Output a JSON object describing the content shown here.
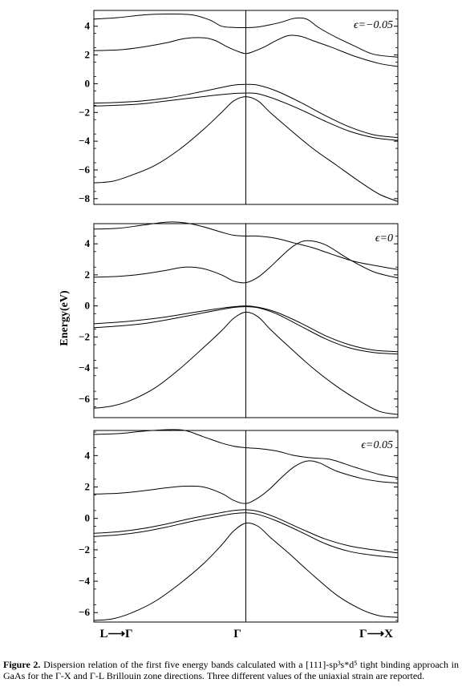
{
  "figure": {
    "caption_label": "Figure 2.",
    "caption_text": " Dispersion relation of the first five energy bands calculated with a [111]-sp³s*d⁵ tight binding approach in GaAs for the Γ-X and Γ-L Brillouin zone directions. Three different values of the uniaxial strain are reported."
  },
  "chart_data": {
    "type": "line",
    "ylabel": "Energy(eV)",
    "x_tick_labels": [
      "L⟶Γ",
      "Γ",
      "Γ⟶X"
    ],
    "xlim": [
      0,
      1
    ],
    "x_note": "x=0 is L, x=0.5 is Γ, x=1 is X",
    "panels": [
      {
        "label": "ϵ=−0.05",
        "ylim": [
          -8.4,
          5.1
        ],
        "yticks": [
          -8,
          -6,
          -4,
          -2,
          0,
          2,
          4
        ],
        "series": [
          {
            "x": [
              0,
              0.08,
              0.16,
              0.24,
              0.32,
              0.38,
              0.42,
              0.46,
              0.5,
              0.54,
              0.58,
              0.62,
              0.66,
              0.7,
              0.74,
              0.8,
              0.86,
              0.92,
              1.0
            ],
            "y": [
              4.5,
              4.6,
              4.78,
              4.85,
              4.8,
              4.45,
              4.0,
              3.92,
              3.9,
              3.95,
              4.1,
              4.3,
              4.55,
              4.5,
              3.9,
              3.2,
              2.6,
              2.05,
              1.85
            ]
          },
          {
            "x": [
              0,
              0.08,
              0.16,
              0.24,
              0.3,
              0.36,
              0.4,
              0.44,
              0.48,
              0.5,
              0.52,
              0.56,
              0.6,
              0.64,
              0.68,
              0.72,
              0.78,
              0.86,
              0.94,
              1.0
            ],
            "y": [
              2.3,
              2.35,
              2.55,
              2.85,
              3.15,
              3.2,
              3.0,
              2.55,
              2.2,
              2.1,
              2.2,
              2.55,
              3.0,
              3.35,
              3.3,
              3.0,
              2.55,
              1.9,
              1.4,
              1.2
            ]
          },
          {
            "x": [
              0,
              0.08,
              0.16,
              0.24,
              0.32,
              0.4,
              0.46,
              0.5,
              0.54,
              0.6,
              0.68,
              0.76,
              0.84,
              0.92,
              1.0
            ],
            "y": [
              -1.35,
              -1.3,
              -1.2,
              -1.0,
              -0.7,
              -0.35,
              -0.1,
              -0.05,
              -0.1,
              -0.5,
              -1.3,
              -2.2,
              -3.0,
              -3.55,
              -3.75
            ]
          },
          {
            "x": [
              0,
              0.08,
              0.16,
              0.24,
              0.32,
              0.4,
              0.46,
              0.5,
              0.54,
              0.6,
              0.68,
              0.76,
              0.84,
              0.92,
              1.0
            ],
            "y": [
              -1.55,
              -1.5,
              -1.4,
              -1.2,
              -1.0,
              -0.8,
              -0.68,
              -0.65,
              -0.7,
              -1.1,
              -1.8,
              -2.6,
              -3.3,
              -3.75,
              -3.95
            ]
          },
          {
            "x": [
              0,
              0.06,
              0.12,
              0.2,
              0.28,
              0.36,
              0.42,
              0.46,
              0.5,
              0.54,
              0.58,
              0.64,
              0.72,
              0.8,
              0.88,
              0.94,
              1.0
            ],
            "y": [
              -6.9,
              -6.8,
              -6.4,
              -5.7,
              -4.6,
              -3.2,
              -2.0,
              -1.2,
              -0.9,
              -1.2,
              -2.0,
              -3.1,
              -4.5,
              -5.7,
              -6.9,
              -7.7,
              -8.2
            ]
          }
        ]
      },
      {
        "label": "ϵ=0",
        "ylim": [
          -7.2,
          5.3
        ],
        "yticks": [
          -6,
          -4,
          -2,
          0,
          2,
          4
        ],
        "series": [
          {
            "x": [
              0,
              0.08,
              0.16,
              0.24,
              0.3,
              0.36,
              0.42,
              0.46,
              0.5,
              0.54,
              0.6,
              0.66,
              0.72,
              0.78,
              0.86,
              0.94,
              1.0
            ],
            "y": [
              4.95,
              5.0,
              5.2,
              5.4,
              5.35,
              5.1,
              4.75,
              4.55,
              4.5,
              4.5,
              4.35,
              4.05,
              3.75,
              3.35,
              2.85,
              2.55,
              2.35
            ]
          },
          {
            "x": [
              0,
              0.08,
              0.16,
              0.24,
              0.3,
              0.36,
              0.42,
              0.46,
              0.5,
              0.54,
              0.58,
              0.62,
              0.66,
              0.7,
              0.76,
              0.84,
              0.92,
              1.0
            ],
            "y": [
              1.85,
              1.9,
              2.05,
              2.3,
              2.5,
              2.4,
              2.0,
              1.6,
              1.5,
              1.85,
              2.5,
              3.25,
              3.9,
              4.2,
              3.95,
              3.0,
              2.2,
              1.8
            ]
          },
          {
            "x": [
              0,
              0.08,
              0.16,
              0.24,
              0.32,
              0.4,
              0.46,
              0.5,
              0.54,
              0.6,
              0.68,
              0.76,
              0.84,
              0.92,
              1.0
            ],
            "y": [
              -1.15,
              -1.05,
              -0.9,
              -0.7,
              -0.45,
              -0.2,
              -0.05,
              0.0,
              -0.08,
              -0.4,
              -1.1,
              -1.9,
              -2.5,
              -2.85,
              -2.95
            ]
          },
          {
            "x": [
              0,
              0.08,
              0.16,
              0.24,
              0.32,
              0.4,
              0.46,
              0.5,
              0.54,
              0.6,
              0.68,
              0.76,
              0.84,
              0.92,
              1.0
            ],
            "y": [
              -1.4,
              -1.3,
              -1.15,
              -0.9,
              -0.6,
              -0.3,
              -0.1,
              -0.05,
              -0.12,
              -0.5,
              -1.3,
              -2.1,
              -2.7,
              -3.0,
              -3.1
            ]
          },
          {
            "x": [
              0,
              0.06,
              0.12,
              0.2,
              0.28,
              0.36,
              0.42,
              0.46,
              0.5,
              0.54,
              0.58,
              0.64,
              0.72,
              0.8,
              0.88,
              0.94,
              1.0
            ],
            "y": [
              -6.6,
              -6.45,
              -6.1,
              -5.3,
              -4.1,
              -2.7,
              -1.6,
              -0.8,
              -0.4,
              -0.7,
              -1.5,
              -2.6,
              -4.0,
              -5.2,
              -6.2,
              -6.8,
              -7.0
            ]
          }
        ]
      },
      {
        "label": "ϵ=0.05",
        "ylim": [
          -6.6,
          5.6
        ],
        "yticks": [
          -6,
          -4,
          -2,
          0,
          2,
          4
        ],
        "series": [
          {
            "x": [
              0,
              0.08,
              0.16,
              0.24,
              0.3,
              0.36,
              0.42,
              0.46,
              0.5,
              0.54,
              0.6,
              0.66,
              0.72,
              0.78,
              0.86,
              0.94,
              1.0
            ],
            "y": [
              5.35,
              5.4,
              5.55,
              5.65,
              5.6,
              5.2,
              4.8,
              4.6,
              4.5,
              4.45,
              4.3,
              4.0,
              3.85,
              3.75,
              3.25,
              2.8,
              2.6
            ]
          },
          {
            "x": [
              0,
              0.08,
              0.16,
              0.24,
              0.3,
              0.36,
              0.42,
              0.46,
              0.5,
              0.54,
              0.58,
              0.62,
              0.66,
              0.7,
              0.74,
              0.8,
              0.88,
              0.94,
              1.0
            ],
            "y": [
              1.55,
              1.6,
              1.75,
              1.95,
              2.05,
              2.0,
              1.6,
              1.15,
              0.95,
              1.3,
              1.9,
              2.65,
              3.3,
              3.65,
              3.55,
              3.0,
              2.55,
              2.35,
              2.25
            ]
          },
          {
            "x": [
              0,
              0.08,
              0.16,
              0.24,
              0.32,
              0.4,
              0.46,
              0.5,
              0.54,
              0.6,
              0.68,
              0.76,
              0.84,
              0.92,
              1.0
            ],
            "y": [
              -0.95,
              -0.85,
              -0.65,
              -0.35,
              0.0,
              0.3,
              0.5,
              0.55,
              0.45,
              0.05,
              -0.65,
              -1.3,
              -1.75,
              -2.0,
              -2.2
            ]
          },
          {
            "x": [
              0,
              0.08,
              0.16,
              0.24,
              0.32,
              0.4,
              0.46,
              0.5,
              0.54,
              0.6,
              0.68,
              0.76,
              0.84,
              0.92,
              1.0
            ],
            "y": [
              -1.15,
              -1.05,
              -0.85,
              -0.55,
              -0.2,
              0.1,
              0.3,
              0.35,
              0.25,
              -0.15,
              -0.85,
              -1.6,
              -2.1,
              -2.35,
              -2.5
            ]
          },
          {
            "x": [
              0,
              0.06,
              0.12,
              0.2,
              0.28,
              0.36,
              0.42,
              0.46,
              0.5,
              0.54,
              0.58,
              0.64,
              0.72,
              0.8,
              0.88,
              0.94,
              1.0
            ],
            "y": [
              -6.5,
              -6.4,
              -6.05,
              -5.3,
              -4.2,
              -2.9,
              -1.7,
              -0.8,
              -0.3,
              -0.5,
              -1.2,
              -2.2,
              -3.6,
              -4.9,
              -5.8,
              -6.2,
              -6.3
            ]
          }
        ]
      }
    ]
  }
}
